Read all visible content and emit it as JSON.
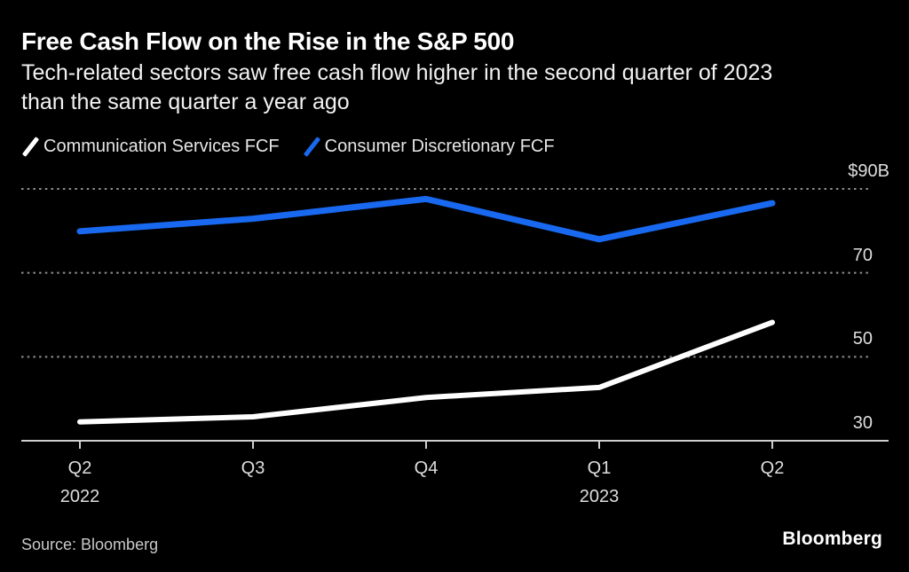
{
  "header": {
    "title": "Free Cash Flow on the Rise in the S&P 500",
    "subtitle_lines": [
      "Tech-related sectors saw free cash flow higher in the second quarter of 2023",
      "than the same quarter a year ago"
    ]
  },
  "legend": {
    "items": [
      {
        "label": "Communication Services FCF",
        "color": "#ffffff"
      },
      {
        "label": "Consumer Discretionary FCF",
        "color": "#1969f0"
      }
    ]
  },
  "chart_data": {
    "type": "line",
    "title": "Free Cash Flow on the Rise in the S&P 500",
    "categories": [
      "Q2 2022",
      "Q3 2022",
      "Q4 2022",
      "Q1 2023",
      "Q2 2023"
    ],
    "series": [
      {
        "name": "Communication Services FCF",
        "color": "#ffffff",
        "width": 6,
        "values": [
          34.5,
          35.7,
          40.3,
          42.7,
          58.2
        ]
      },
      {
        "name": "Consumer Discretionary FCF",
        "color": "#1969f0",
        "width": 7,
        "values": [
          79.9,
          82.9,
          87.6,
          78.0,
          86.6
        ]
      }
    ],
    "unit": "$B",
    "ylim": [
      30,
      90
    ],
    "yticks": [
      {
        "label": "$90B",
        "value": 90,
        "grid": "dotted"
      },
      {
        "label": "70",
        "value": 70,
        "grid": "dotted"
      },
      {
        "label": "50",
        "value": 50,
        "grid": "dotted"
      },
      {
        "label": "30",
        "value": 30,
        "grid": "axis"
      }
    ],
    "xticks": [
      {
        "label": "Q2",
        "year": "2022"
      },
      {
        "label": "Q3",
        "year": ""
      },
      {
        "label": "Q4",
        "year": ""
      },
      {
        "label": "Q1",
        "year": "2023"
      },
      {
        "label": "Q2",
        "year": ""
      }
    ],
    "grid": "horizontal-dotted",
    "legend_position": "top-left"
  },
  "footer": {
    "source": "Source: Bloomberg",
    "logo": "Bloomberg"
  },
  "colors": {
    "background": "#000000",
    "accent_blue": "#1969f0",
    "line_white": "#ffffff",
    "axis": "#cfcfcf",
    "gridline": "#8f8f8f"
  }
}
